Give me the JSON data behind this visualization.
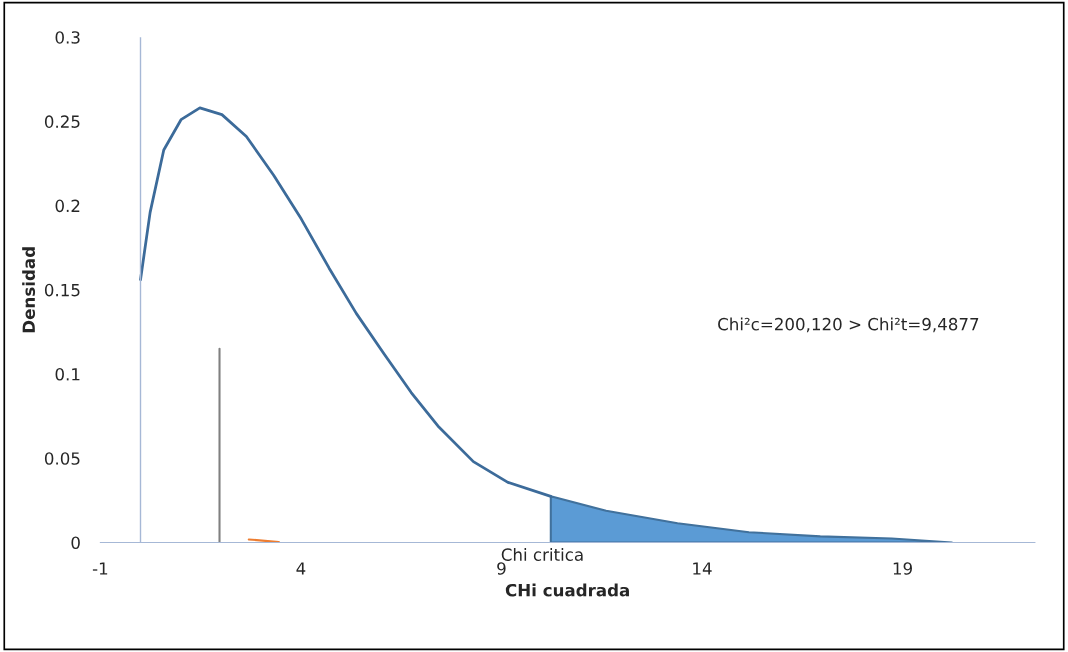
{
  "chart_data": {
    "type": "line",
    "xlabel": "CHi cuadrada",
    "ylabel": "Densidad",
    "xlim": [
      -1,
      22.3
    ],
    "ylim": [
      0,
      0.3
    ],
    "xticks": [
      -1,
      4,
      9,
      14,
      19
    ],
    "yticks": [
      0,
      0.05,
      0.1,
      0.15,
      0.2,
      0.25,
      0.3
    ],
    "grid": false,
    "legend": false,
    "series": [
      {
        "color": "#3c6b9a",
        "x": [
          0,
          0.24,
          0.58,
          1.01,
          1.48,
          2.03,
          2.64,
          3.32,
          4.01,
          4.7,
          5.38,
          6.07,
          6.75,
          7.44,
          8.3,
          9.16,
          10.23
        ],
        "values": [
          0.156,
          0.196,
          0.233,
          0.251,
          0.258,
          0.254,
          0.241,
          0.218,
          0.192,
          0.163,
          0.136,
          0.112,
          0.089,
          0.0685,
          0.048,
          0.0357,
          0.0274
        ]
      },
      {
        "type": "area",
        "color": "#5b9bd5",
        "x": [
          10.23,
          11.61,
          13.39,
          15.17,
          16.95,
          18.73,
          20.23
        ],
        "values": [
          0.0274,
          0.0188,
          0.0114,
          0.0061,
          0.0036,
          0.0024,
          0
        ]
      },
      {
        "color": "#808080",
        "x": [
          1.97,
          1.97
        ],
        "values": [
          0,
          0.115
        ]
      },
      {
        "color": "#ed7d31",
        "x": [
          2.7,
          3.45
        ],
        "values": [
          0.0018,
          0.0002
        ]
      }
    ],
    "ref_lines": [
      {
        "axis": "x",
        "value": 0,
        "color": "#a6b8d6"
      }
    ],
    "annotations": [
      "Chi²c=200,120 > Chi²t=9,4877",
      {
        "text": "Chi critica",
        "x": 10.23,
        "y": 0
      }
    ]
  }
}
